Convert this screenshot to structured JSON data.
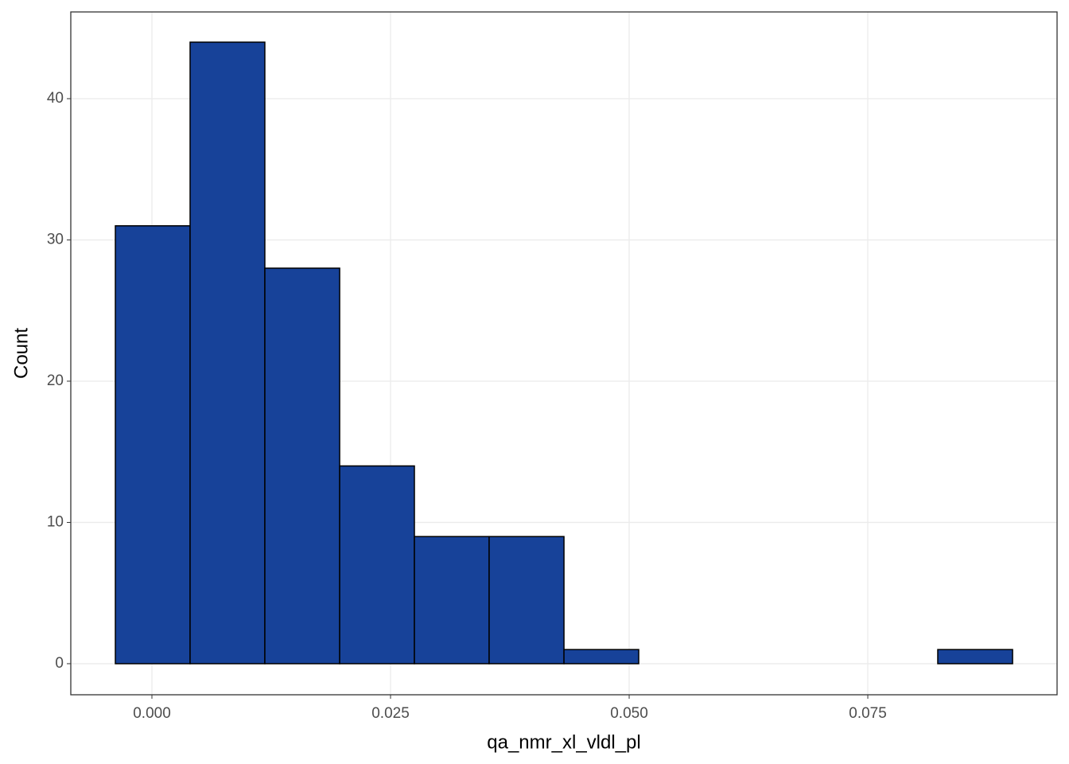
{
  "chart_data": {
    "type": "histogram",
    "x_label": "qa_nmr_xl_vldl_pl",
    "y_label": "Count",
    "bins": [
      -0.00383,
      0.004,
      0.01183,
      0.01967,
      0.0275,
      0.03533,
      0.04317,
      0.051,
      0.05883,
      0.06667,
      0.0745,
      0.08233,
      0.09017
    ],
    "values": [
      31,
      44,
      28,
      14,
      9,
      9,
      1,
      0,
      0,
      0,
      0,
      1
    ],
    "color": "#174299",
    "edge_color": "#000000",
    "xlim": [
      -0.0085,
      0.09483
    ],
    "ylim": [
      -2.2,
      46.14
    ],
    "xticks": [
      {
        "value": 0,
        "label": "0.000"
      },
      {
        "value": 0.025,
        "label": "0.025"
      },
      {
        "value": 0.05,
        "label": "0.050"
      },
      {
        "value": 0.075,
        "label": "0.075"
      }
    ],
    "yticks": [
      0,
      10,
      20,
      30,
      40
    ],
    "grid": true
  }
}
